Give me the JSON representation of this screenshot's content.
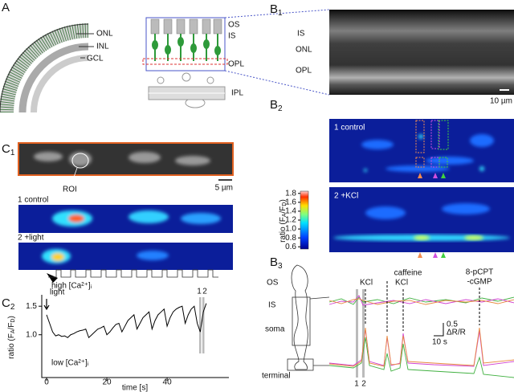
{
  "panel_a": {
    "label": "A",
    "retina_labels": [
      "ONL",
      "INL",
      "GCL"
    ],
    "schematic_labels": [
      "OS",
      "IS",
      "OPL",
      "IPL"
    ]
  },
  "panel_b1": {
    "label": "B",
    "sub": "1",
    "layers": [
      "IS",
      "ONL",
      "OPL"
    ],
    "scalebar": "10 µm"
  },
  "panel_b2": {
    "label": "B",
    "sub": "2",
    "image_titles": [
      "1 control",
      "2 +KCl"
    ],
    "colorbar": {
      "label_parts": [
        "ratio (F",
        "A",
        "/F",
        "D",
        ")"
      ],
      "lim": [
        0.55,
        1.85
      ],
      "ticks": [
        0.6,
        0.8,
        {
          "value": 1,
          "label": "1.0"
        },
        1.2,
        1.4,
        1.6,
        1.8
      ]
    }
  },
  "panel_b3": {
    "label": "B",
    "sub": "3",
    "cell_labels": [
      "OS",
      "IS",
      "soma",
      "terminal"
    ],
    "stimuli": [
      "KCl",
      "caffeine",
      "KCl",
      "8-pCPT",
      "-cGMP"
    ],
    "scale_y": "0.5",
    "scale_y_unit": "ΔR/R",
    "scale_x": "10 s",
    "frames": [
      "1",
      "2"
    ]
  },
  "panel_c1": {
    "label": "C",
    "sub": "1",
    "roi": "ROI",
    "scalebar": "5 µm",
    "image_titles": [
      "1 control",
      "2 +light"
    ],
    "stimulus": "light"
  },
  "chart_data": {
    "type": "line",
    "label": "C",
    "sub": "2",
    "xlabel": "time [s]",
    "ylabel_parts": [
      "ratio (F",
      "A",
      "/F",
      "D",
      ")"
    ],
    "annotations": [
      "high [Ca²⁺]ᵢ",
      "low [Ca²⁺]ᵢ"
    ],
    "frames": [
      "1",
      "2"
    ],
    "color": "#000000",
    "x": [
      0,
      1,
      2,
      3,
      4,
      5,
      6,
      7,
      8,
      9,
      10,
      11,
      12,
      13,
      14,
      15,
      16,
      17,
      18,
      19,
      20,
      21,
      22,
      23,
      24,
      25,
      26,
      27,
      28,
      29,
      30,
      31,
      32,
      33,
      34,
      35,
      36,
      37,
      38,
      39,
      40,
      41,
      42,
      43,
      44,
      45,
      46,
      47,
      48,
      49,
      50,
      51,
      52,
      53
    ],
    "values": [
      1.35,
      1.2,
      1.05,
      0.98,
      1.0,
      0.97,
      0.98,
      0.95,
      1.0,
      1.02,
      1.05,
      1.07,
      1.08,
      1.1,
      0.95,
      1.0,
      1.05,
      1.1,
      1.12,
      1.15,
      1.0,
      1.05,
      1.12,
      1.18,
      1.2,
      1.05,
      1.15,
      1.25,
      1.3,
      1.35,
      1.1,
      1.2,
      1.3,
      1.35,
      1.4,
      1.1,
      1.25,
      1.35,
      1.4,
      1.45,
      1.15,
      1.3,
      1.4,
      1.45,
      1.48,
      1.5,
      1.2,
      1.35,
      1.45,
      1.5,
      1.2,
      1.05,
      1.4,
      1.55
    ],
    "xlim": [
      -1.6,
      60.5
    ],
    "ylim": [
      0.25,
      1.7
    ],
    "xticks": [
      0,
      20,
      40
    ],
    "yticks": [
      {
        "value": 1,
        "label": "1.0"
      },
      {
        "value": 1.5,
        "label": "1.5"
      }
    ]
  }
}
